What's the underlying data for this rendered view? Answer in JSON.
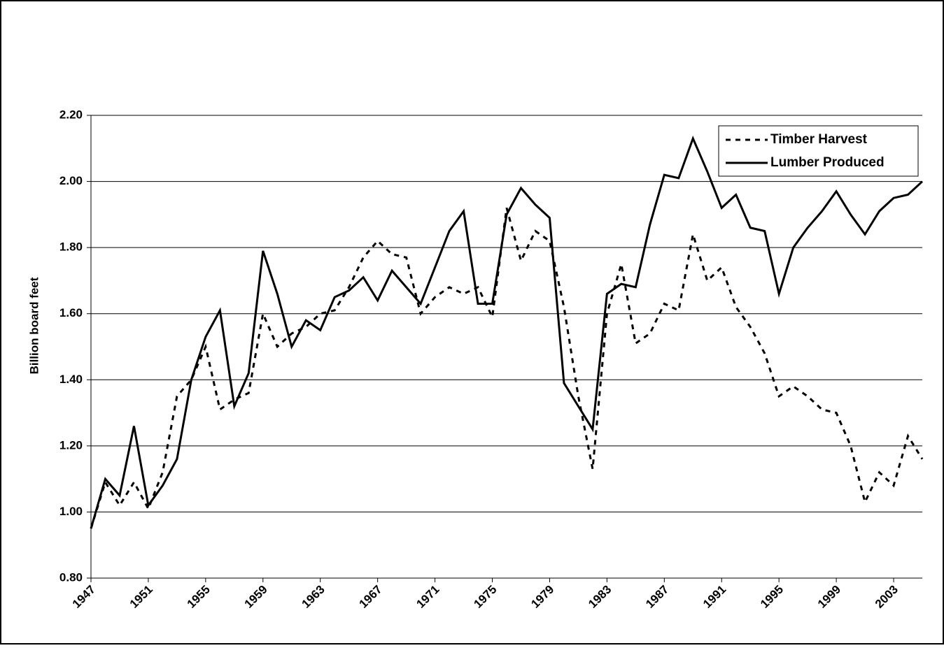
{
  "chart_data": {
    "type": "line",
    "y_label": "Billion board feet",
    "x": [
      1947,
      1948,
      1949,
      1950,
      1951,
      1952,
      1953,
      1954,
      1955,
      1956,
      1957,
      1958,
      1959,
      1960,
      1961,
      1962,
      1963,
      1964,
      1965,
      1966,
      1967,
      1968,
      1969,
      1970,
      1971,
      1972,
      1973,
      1974,
      1975,
      1976,
      1977,
      1978,
      1979,
      1980,
      1981,
      1982,
      1983,
      1984,
      1985,
      1986,
      1987,
      1988,
      1989,
      1990,
      1991,
      1992,
      1993,
      1994,
      1995,
      1996,
      1997,
      1998,
      1999,
      2000,
      2001,
      2002,
      2003,
      2004,
      2005
    ],
    "series": [
      {
        "name": "Timber Harvest",
        "color": "#000000",
        "dash": "dotted",
        "values": [
          0.95,
          1.09,
          1.02,
          1.09,
          1.01,
          1.12,
          1.35,
          1.4,
          1.5,
          1.31,
          1.34,
          1.36,
          1.6,
          1.5,
          1.54,
          1.56,
          1.6,
          1.61,
          1.68,
          1.77,
          1.82,
          1.78,
          1.77,
          1.6,
          1.65,
          1.68,
          1.66,
          1.68,
          1.59,
          1.92,
          1.76,
          1.85,
          1.82,
          1.62,
          1.35,
          1.13,
          1.6,
          1.75,
          1.51,
          1.54,
          1.63,
          1.61,
          1.84,
          1.7,
          1.74,
          1.62,
          1.56,
          1.48,
          1.35,
          1.38,
          1.35,
          1.31,
          1.3,
          1.2,
          1.03,
          1.12,
          1.08,
          1.23,
          1.16
        ]
      },
      {
        "name": "Lumber Produced",
        "color": "#000000",
        "dash": "solid",
        "values": [
          0.95,
          1.1,
          1.05,
          1.26,
          1.02,
          1.08,
          1.16,
          1.4,
          1.53,
          1.61,
          1.32,
          1.42,
          1.79,
          1.66,
          1.5,
          1.58,
          1.55,
          1.65,
          1.67,
          1.71,
          1.64,
          1.73,
          1.68,
          1.63,
          1.74,
          1.85,
          1.91,
          1.63,
          1.63,
          1.9,
          1.98,
          1.93,
          1.89,
          1.39,
          1.32,
          1.25,
          1.66,
          1.69,
          1.68,
          1.87,
          2.02,
          2.01,
          2.13,
          2.03,
          1.92,
          1.96,
          1.86,
          1.85,
          1.66,
          1.8,
          1.86,
          1.91,
          1.97,
          1.9,
          1.84,
          1.91,
          1.95,
          1.96,
          2.0
        ]
      }
    ],
    "xlim": [
      1947,
      2005
    ],
    "xticks": [
      1947,
      1951,
      1955,
      1959,
      1963,
      1967,
      1971,
      1975,
      1979,
      1983,
      1987,
      1991,
      1995,
      1999,
      2003
    ],
    "ylim": [
      0.8,
      2.2
    ],
    "yticks": [
      {
        "value": 0.8,
        "label": "0.80"
      },
      {
        "value": 1.0,
        "label": "1.00"
      },
      {
        "value": 1.2,
        "label": "1.20"
      },
      {
        "value": 1.4,
        "label": "1.40"
      },
      {
        "value": 1.6,
        "label": "1.60"
      },
      {
        "value": 1.8,
        "label": "1.80"
      },
      {
        "value": 2.0,
        "label": "2.00"
      },
      {
        "value": 2.2,
        "label": "2.20"
      }
    ],
    "grid": true,
    "legend": "upper-right"
  }
}
